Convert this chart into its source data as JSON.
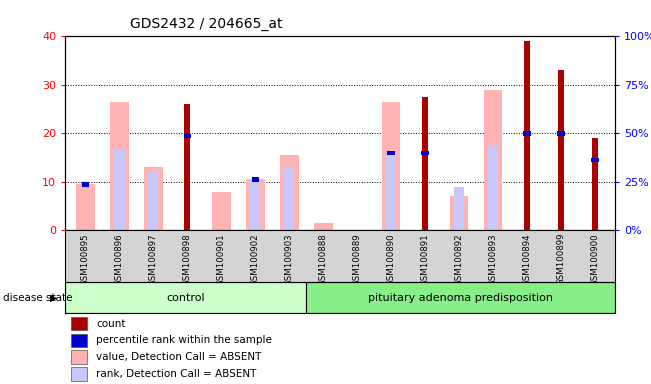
{
  "title": "GDS2432 / 204665_at",
  "samples": [
    "GSM100895",
    "GSM100896",
    "GSM100897",
    "GSM100898",
    "GSM100901",
    "GSM100902",
    "GSM100903",
    "GSM100888",
    "GSM100889",
    "GSM100890",
    "GSM100891",
    "GSM100892",
    "GSM100893",
    "GSM100894",
    "GSM100899",
    "GSM100900"
  ],
  "count": [
    0,
    0,
    0,
    26,
    0,
    0,
    0,
    0,
    0,
    0,
    27.5,
    0,
    0,
    39,
    33,
    19
  ],
  "percentile": [
    9.5,
    0,
    0,
    19.5,
    0,
    10.5,
    0,
    0,
    0,
    16,
    16,
    0,
    0,
    20,
    20,
    14.5
  ],
  "value_absent": [
    9.5,
    26.5,
    13,
    0,
    8,
    10.5,
    15.5,
    1.5,
    0,
    26.5,
    0,
    7,
    29,
    0,
    0,
    0
  ],
  "rank_absent": [
    0,
    16.5,
    12,
    0,
    0,
    10.5,
    13,
    0,
    0,
    16,
    0,
    9,
    17.5,
    0,
    0,
    0
  ],
  "control_count": 7,
  "pituitary_count": 9,
  "ylim_left": [
    0,
    40
  ],
  "ylim_right": [
    0,
    100
  ],
  "yticks_left": [
    0,
    10,
    20,
    30,
    40
  ],
  "ytick_labels_right": [
    "0%",
    "25%",
    "50%",
    "75%",
    "100%"
  ],
  "control_label": "control",
  "pituitary_label": "pituitary adenoma predisposition",
  "disease_state_label": "disease state",
  "count_color": "#aa0000",
  "percentile_color": "#0000cc",
  "value_absent_color": "#ffb3b3",
  "rank_absent_color": "#c8c8ff",
  "control_bg": "#ccffcc",
  "pituitary_bg": "#88ee88",
  "gray_bg": "#d4d4d4"
}
